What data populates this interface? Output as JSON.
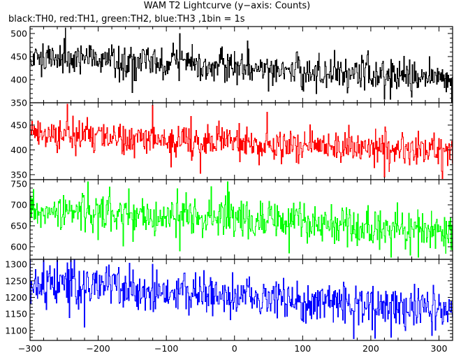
{
  "title": "WAM T2 Lightcurve (y−axis: Counts)",
  "subtitle": "black:TH0, red:TH1, green:TH2, blue:TH3 ,1bin = 1s",
  "chart_data": {
    "type": "line",
    "x_range": [
      -300,
      320
    ],
    "x_ticks": [
      -300,
      -200,
      -100,
      0,
      100,
      200,
      300
    ],
    "x_tick_labels": [
      "−300",
      "−200",
      "−100",
      "0",
      "100",
      "200",
      "300"
    ],
    "panels": [
      {
        "name": "TH0",
        "color": "#000000",
        "ylim": [
          350,
          515
        ],
        "y_ticks": [
          350,
          400,
          450,
          500
        ],
        "y_tick_labels": [
          "350",
          "400",
          "450",
          "500"
        ],
        "trend": [
          [
            -300,
            450
          ],
          [
            -200,
            445
          ],
          [
            -100,
            435
          ],
          [
            0,
            428
          ],
          [
            100,
            418
          ],
          [
            200,
            410
          ],
          [
            320,
            405
          ]
        ],
        "noise_sd": 18,
        "extremes": [
          [
            -248,
            512
          ],
          [
            -80,
            500
          ],
          [
            -150,
            372
          ],
          [
            50,
            375
          ],
          [
            319,
            348
          ],
          [
            260,
            362
          ],
          [
            120,
            370
          ]
        ]
      },
      {
        "name": "TH1",
        "color": "#ff0000",
        "ylim": [
          340,
          495
        ],
        "y_ticks": [
          350,
          400,
          450
        ],
        "y_tick_labels": [
          "350",
          "400",
          "450"
        ],
        "trend": [
          [
            -300,
            432
          ],
          [
            -200,
            428
          ],
          [
            -100,
            420
          ],
          [
            0,
            415
          ],
          [
            100,
            410
          ],
          [
            200,
            402
          ],
          [
            320,
            395
          ]
        ],
        "noise_sd": 17,
        "extremes": [
          [
            -245,
            492
          ],
          [
            -120,
            490
          ],
          [
            -50,
            353
          ],
          [
            220,
            345
          ],
          [
            305,
            342
          ],
          [
            -310,
            360
          ]
        ]
      },
      {
        "name": "TH2",
        "color": "#00ff00",
        "ylim": [
          570,
          760
        ],
        "y_ticks": [
          600,
          650,
          700,
          750
        ],
        "y_tick_labels": [
          "600",
          "650",
          "700",
          "750"
        ],
        "trend": [
          [
            -300,
            690
          ],
          [
            -200,
            680
          ],
          [
            -100,
            672
          ],
          [
            0,
            668
          ],
          [
            100,
            655
          ],
          [
            200,
            645
          ],
          [
            320,
            640
          ]
        ],
        "noise_sd": 24,
        "extremes": [
          [
            -215,
            755
          ],
          [
            -10,
            755
          ],
          [
            -80,
            590
          ],
          [
            80,
            585
          ],
          [
            230,
            575
          ],
          [
            270,
            575
          ],
          [
            320,
            590
          ]
        ]
      },
      {
        "name": "TH3",
        "color": "#0000ff",
        "ylim": [
          1070,
          1315
        ],
        "y_ticks": [
          1100,
          1150,
          1200,
          1250,
          1300
        ],
        "y_tick_labels": [
          "1100",
          "1150",
          "1200",
          "1250",
          "1300"
        ],
        "trend": [
          [
            -300,
            1240
          ],
          [
            -200,
            1230
          ],
          [
            -100,
            1215
          ],
          [
            0,
            1200
          ],
          [
            100,
            1190
          ],
          [
            200,
            1175
          ],
          [
            320,
            1160
          ]
        ],
        "noise_sd": 32,
        "extremes": [
          [
            -240,
            1315
          ],
          [
            -260,
            1312
          ],
          [
            -120,
            1300
          ],
          [
            175,
            1075
          ],
          [
            230,
            1080
          ],
          [
            290,
            1085
          ],
          [
            -220,
            1110
          ]
        ]
      }
    ]
  }
}
